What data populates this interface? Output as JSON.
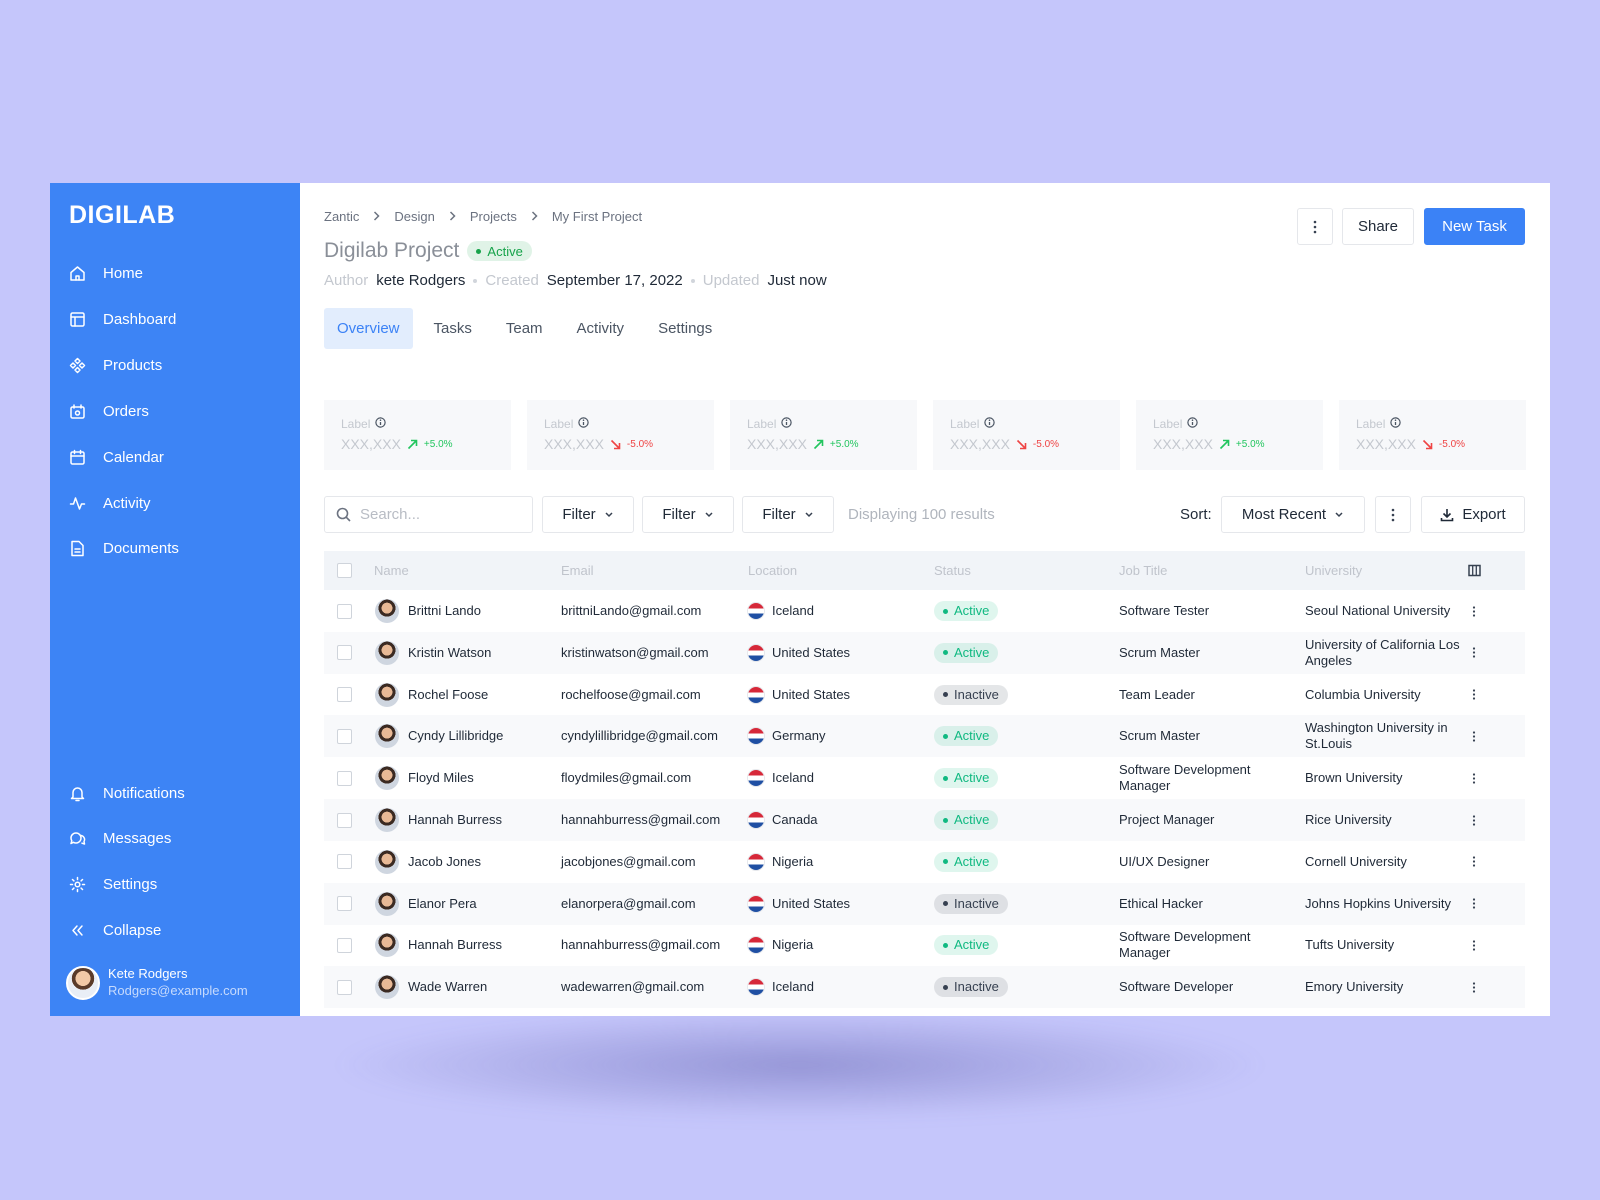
{
  "sidebar": {
    "logo": "DIGILAB",
    "nav": [
      "Home",
      "Dashboard",
      "Products",
      "Orders",
      "Calendar",
      "Activity",
      "Documents"
    ],
    "bottom_nav": [
      "Notifications",
      "Messages",
      "Settings",
      "Collapse"
    ],
    "user": {
      "name": "Kete Rodgers",
      "email": "Rodgers@example.com"
    }
  },
  "header": {
    "breadcrumb": [
      "Zantic",
      "Design",
      "Projects",
      "My First Project"
    ],
    "title": "Digilab Project",
    "status": {
      "text": "Active",
      "color": "#16a34a"
    },
    "meta": [
      {
        "label": "Author",
        "value": "kete Rodgers"
      },
      {
        "label": "Created",
        "value": "September 17, 2022"
      },
      {
        "label": "Updated",
        "value": "Just now"
      }
    ],
    "buttons": [
      "Share",
      "New Task"
    ]
  },
  "tabs": [
    "Overview",
    "Tasks",
    "Team",
    "Activity",
    "Settings"
  ],
  "stats": [
    {
      "label": "Label",
      "value": "XXX,XXX",
      "change": "+5.0%",
      "color": "#22c55e"
    },
    {
      "label": "Label",
      "value": "XXX,XXX",
      "change": "-5.0%",
      "color": "#ef4444"
    },
    {
      "label": "Label",
      "value": "XXX,XXX",
      "change": "+5.0%",
      "color": "#22c55e"
    },
    {
      "label": "Label",
      "value": "XXX,XXX",
      "change": "-5.0%",
      "color": "#ef4444"
    },
    {
      "label": "Label",
      "value": "XXX,XXX",
      "change": "+5.0%",
      "color": "#22c55e"
    },
    {
      "label": "Label",
      "value": "XXX,XXX",
      "change": "-5.0%",
      "color": "#ef4444"
    }
  ],
  "toolbar": {
    "search_placeholder": "Search...",
    "filters": [
      "Filter",
      "Filter",
      "Filter"
    ],
    "results": "Displaying 100 results",
    "sort_label": "Sort:",
    "sort_value": "Most Recent",
    "export": "Export"
  },
  "table": {
    "columns": [
      "Name",
      "Email",
      "Location",
      "Status",
      "Job Title",
      "University"
    ],
    "rows": [
      {
        "name": "Brittni Lando",
        "email": "brittniLando@gmail.com",
        "location": "Iceland",
        "status": {
          "text": "Active",
          "color": "#10b981"
        },
        "job_title": "Software Tester",
        "university": "Seoul National University"
      },
      {
        "name": "Kristin Watson",
        "email": "kristinwatson@gmail.com",
        "location": "United States",
        "status": {
          "text": "Active",
          "color": "#10b981"
        },
        "job_title": "Scrum Master",
        "university": "University of California Los Angeles"
      },
      {
        "name": "Rochel Foose",
        "email": "rochelfoose@gmail.com",
        "location": "United States",
        "status": {
          "text": "Inactive",
          "color": "#374151"
        },
        "job_title": "Team Leader",
        "university": "Columbia University"
      },
      {
        "name": "Cyndy Lillibridge",
        "email": "cyndylillibridge@gmail.com",
        "location": "Germany",
        "status": {
          "text": "Active",
          "color": "#10b981"
        },
        "job_title": "Scrum Master",
        "university": "Washington University in St.Louis"
      },
      {
        "name": "Floyd Miles",
        "email": "floydmiles@gmail.com",
        "location": "Iceland",
        "status": {
          "text": "Active",
          "color": "#10b981"
        },
        "job_title": "Software Development Manager",
        "university": "Brown University"
      },
      {
        "name": "Hannah Burress",
        "email": "hannahburress@gmail.com",
        "location": "Canada",
        "status": {
          "text": "Active",
          "color": "#10b981"
        },
        "job_title": "Project Manager",
        "university": "Rice University"
      },
      {
        "name": "Jacob Jones",
        "email": "jacobjones@gmail.com",
        "location": "Nigeria",
        "status": {
          "text": "Active",
          "color": "#10b981"
        },
        "job_title": "UI/UX Designer",
        "university": "Cornell University"
      },
      {
        "name": "Elanor Pera",
        "email": "elanorpera@gmail.com",
        "location": "United States",
        "status": {
          "text": "Inactive",
          "color": "#374151"
        },
        "job_title": "Ethical Hacker",
        "university": "Johns Hopkins University"
      },
      {
        "name": "Hannah Burress",
        "email": "hannahburress@gmail.com",
        "location": "Nigeria",
        "status": {
          "text": "Active",
          "color": "#10b981"
        },
        "job_title": "Software Development Manager",
        "university": "Tufts University"
      },
      {
        "name": "Wade Warren",
        "email": "wadewarren@gmail.com",
        "location": "Iceland",
        "status": {
          "text": "Inactive",
          "color": "#374151"
        },
        "job_title": "Software Developer",
        "university": "Emory University"
      }
    ]
  }
}
